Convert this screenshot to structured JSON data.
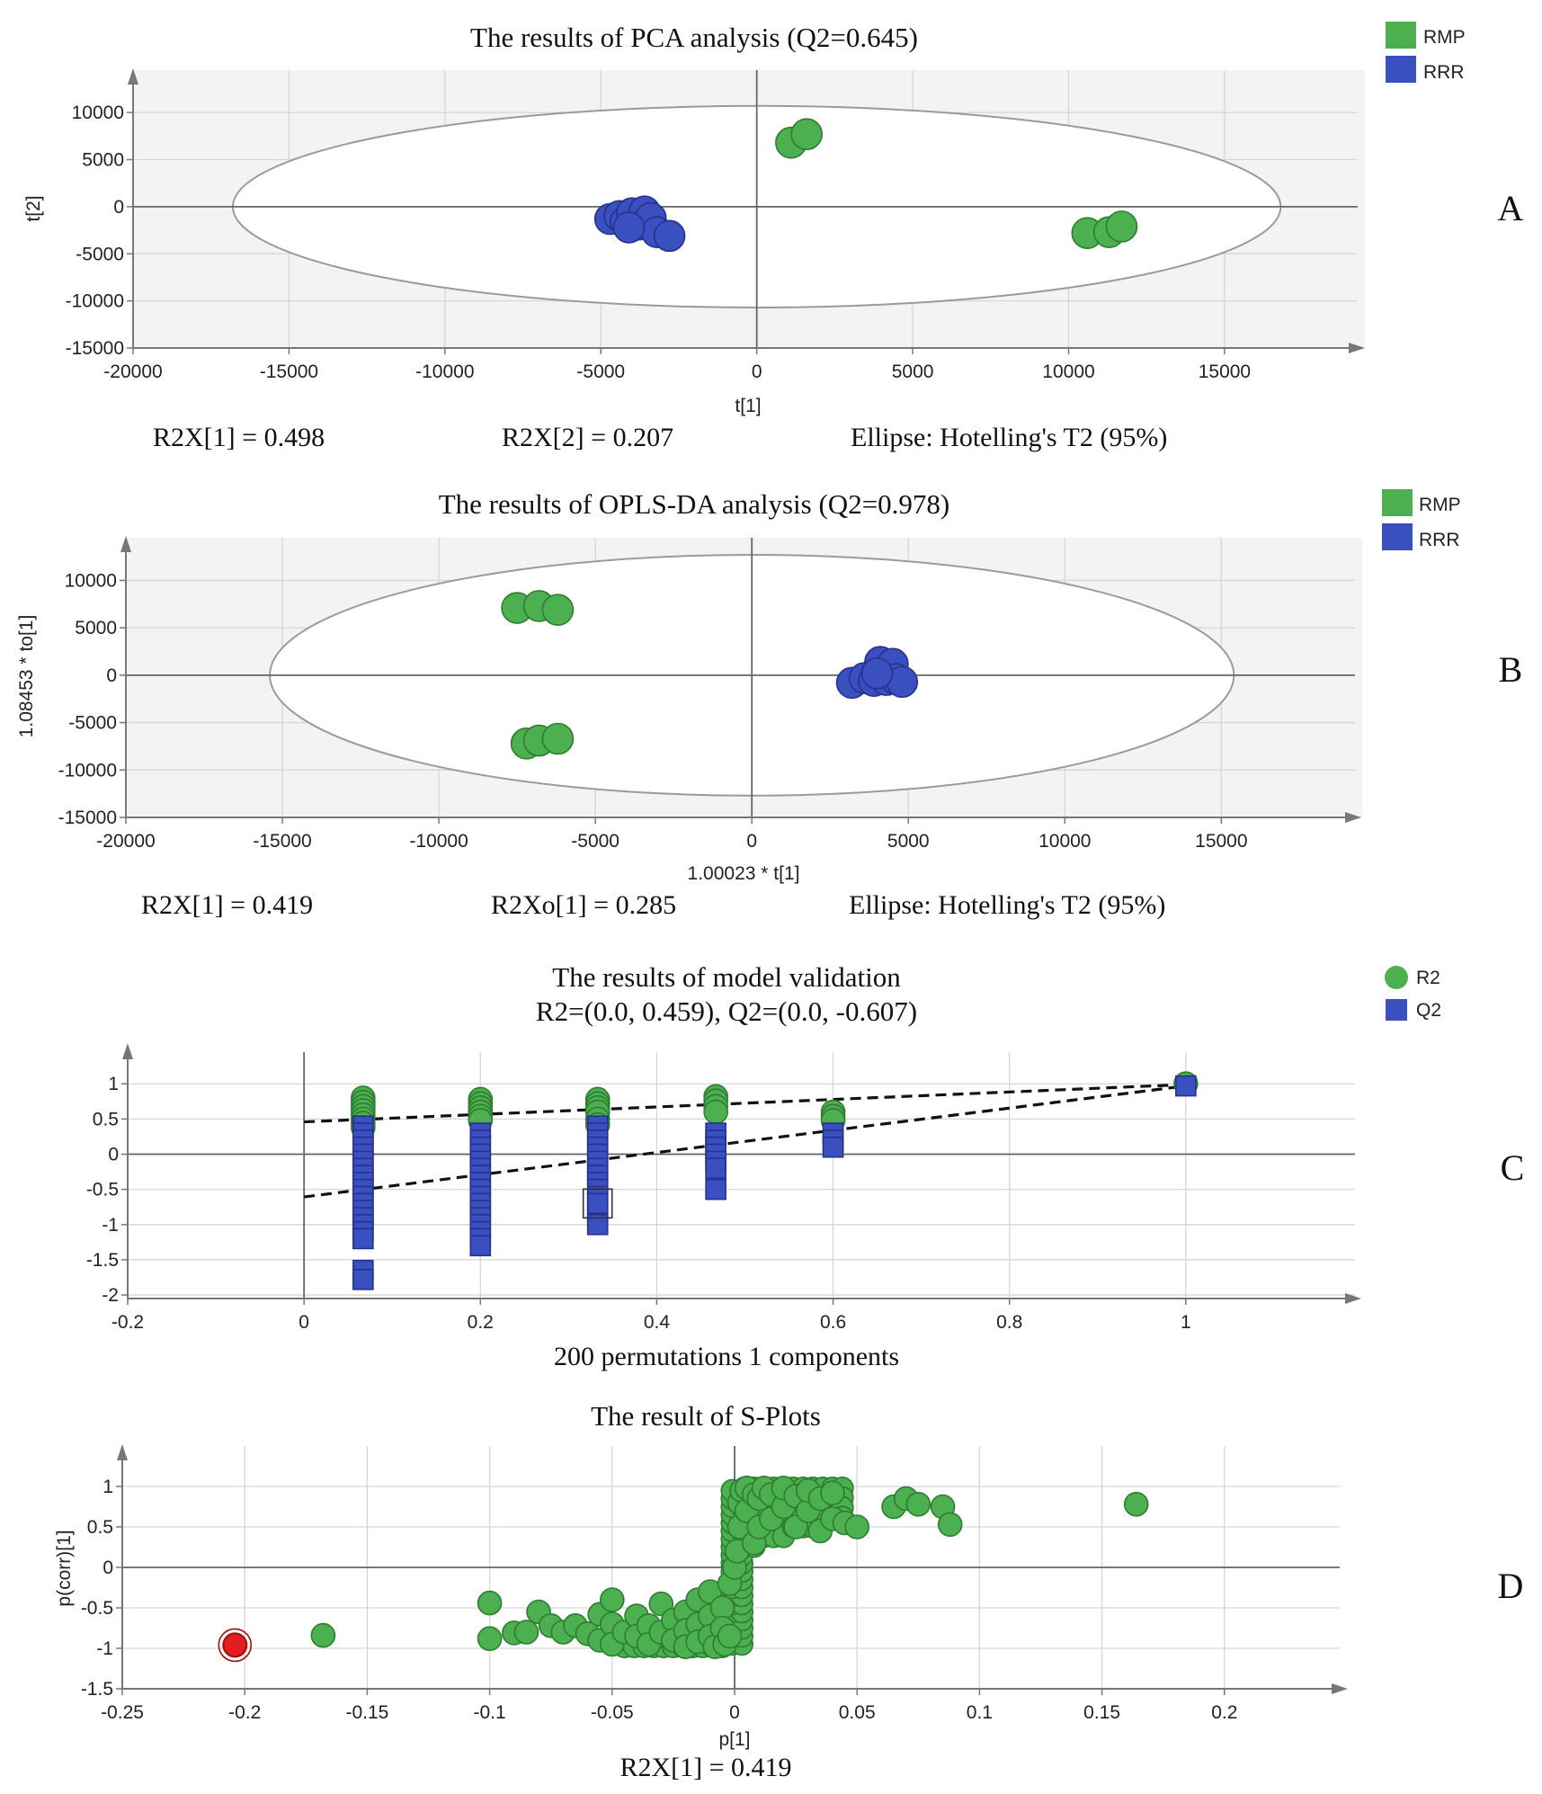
{
  "chart_data": [
    {
      "id": "A",
      "type": "scatter",
      "panel_letter": "A",
      "title": "The results of PCA analysis (Q2=0.645)",
      "xlabel": "t[1]",
      "ylabel": "t[2]",
      "xlim": [
        -20000,
        19500
      ],
      "ylim": [
        -15000,
        14500
      ],
      "xticks": [
        -20000,
        -15000,
        -10000,
        -5000,
        0,
        5000,
        10000,
        15000
      ],
      "yticks": [
        10000,
        5000,
        0,
        -5000,
        -10000,
        -15000
      ],
      "grid": true,
      "legend_position": "top-right",
      "legend": [
        {
          "name": "RMP",
          "color": "#4caf50"
        },
        {
          "name": "RRR",
          "color": "#3a4fc0"
        }
      ],
      "ellipse": {
        "label": "Hotelling's T2 (95%)",
        "center": [
          0,
          0
        ],
        "rx": 16800,
        "ry": 10700
      },
      "series": [
        {
          "name": "RMP",
          "points": [
            [
              1100,
              6800
            ],
            [
              1600,
              7700
            ],
            [
              10600,
              -2800
            ],
            [
              11300,
              -2700
            ],
            [
              11700,
              -2100
            ]
          ]
        },
        {
          "name": "RRR",
          "points": [
            [
              -4700,
              -1300
            ],
            [
              -4400,
              -1000
            ],
            [
              -4200,
              -1600
            ],
            [
              -4000,
              -700
            ],
            [
              -3800,
              -1900
            ],
            [
              -3600,
              -500
            ],
            [
              -3400,
              -1200
            ],
            [
              -3200,
              -2700
            ],
            [
              -2800,
              -3100
            ],
            [
              -4100,
              -2200
            ]
          ]
        }
      ],
      "stats": [
        "R2X[1] = 0.498",
        "R2X[2] = 0.207",
        "Ellipse: Hotelling's T2 (95%)"
      ]
    },
    {
      "id": "B",
      "type": "scatter",
      "panel_letter": "B",
      "title": "The results of OPLS-DA analysis (Q2=0.978)",
      "xlabel": "1.00023 * t[1]",
      "ylabel": "1.08453 * to[1]",
      "xlim": [
        -20000,
        19500
      ],
      "ylim": [
        -15000,
        14500
      ],
      "xticks": [
        -20000,
        -15000,
        -10000,
        -5000,
        0,
        5000,
        10000,
        15000
      ],
      "yticks": [
        10000,
        5000,
        0,
        -5000,
        -10000,
        -15000
      ],
      "grid": true,
      "legend_position": "top-right",
      "legend": [
        {
          "name": "RMP",
          "color": "#4caf50"
        },
        {
          "name": "RRR",
          "color": "#3a4fc0"
        }
      ],
      "ellipse": {
        "label": "Hotelling's T2 (95%)",
        "center": [
          0,
          0
        ],
        "rx": 15400,
        "ry": 12700
      },
      "series": [
        {
          "name": "RMP",
          "points": [
            [
              -7500,
              7100
            ],
            [
              -6800,
              7300
            ],
            [
              -6200,
              6900
            ],
            [
              -7200,
              -7200
            ],
            [
              -6800,
              -6900
            ],
            [
              -6200,
              -6700
            ]
          ]
        },
        {
          "name": "RRR",
          "points": [
            [
              3200,
              -800
            ],
            [
              3600,
              -300
            ],
            [
              3900,
              -600
            ],
            [
              4100,
              1400
            ],
            [
              4300,
              -500
            ],
            [
              4500,
              1200
            ],
            [
              4600,
              -400
            ],
            [
              4800,
              -700
            ],
            [
              4000,
              200
            ]
          ]
        }
      ],
      "stats": [
        "R2X[1] = 0.419",
        "R2Xo[1] = 0.285",
        "Ellipse: Hotelling's T2 (95%)"
      ]
    },
    {
      "id": "C",
      "type": "scatter",
      "panel_letter": "C",
      "title": "The results of model validation",
      "subtitle": "R2=(0.0, 0.459), Q2=(0.0, -0.607)",
      "xlabel": "200 permutations 1 components",
      "ylabel": "",
      "xlim": [
        -0.2,
        1.2
      ],
      "ylim": [
        -2.05,
        1.45
      ],
      "xticks": [
        -0.2,
        0,
        0.2,
        0.4,
        0.6,
        0.8,
        1
      ],
      "yticks": [
        1,
        0.5,
        0,
        -0.5,
        -1,
        -1.5,
        -2
      ],
      "grid": true,
      "legend_position": "top-right",
      "legend": [
        {
          "name": "R2",
          "color": "#4caf50",
          "marker": "circle"
        },
        {
          "name": "Q2",
          "color": "#3a4fc0",
          "marker": "square"
        }
      ],
      "regression_lines": [
        {
          "name": "R2",
          "from": [
            0,
            0.459
          ],
          "to": [
            1,
            0.99
          ]
        },
        {
          "name": "Q2",
          "from": [
            0,
            -0.607
          ],
          "to": [
            1,
            0.97
          ]
        }
      ],
      "series": [
        {
          "name": "R2",
          "marker": "circle",
          "points": [
            [
              0.067,
              0.8
            ],
            [
              0.067,
              0.74
            ],
            [
              0.067,
              0.68
            ],
            [
              0.067,
              0.62
            ],
            [
              0.067,
              0.56
            ],
            [
              0.067,
              0.5
            ],
            [
              0.067,
              0.44
            ],
            [
              0.067,
              0.38
            ],
            [
              0.2,
              0.78
            ],
            [
              0.2,
              0.72
            ],
            [
              0.2,
              0.66
            ],
            [
              0.2,
              0.6
            ],
            [
              0.2,
              0.54
            ],
            [
              0.2,
              0.48
            ],
            [
              0.333,
              0.78
            ],
            [
              0.333,
              0.72
            ],
            [
              0.333,
              0.66
            ],
            [
              0.333,
              0.6
            ],
            [
              0.333,
              0.5
            ],
            [
              0.333,
              0.42
            ],
            [
              0.467,
              0.82
            ],
            [
              0.467,
              0.76
            ],
            [
              0.467,
              0.68
            ],
            [
              0.467,
              0.6
            ],
            [
              0.6,
              0.6
            ],
            [
              0.6,
              0.54
            ],
            [
              0.6,
              0.48
            ],
            [
              1,
              1.0
            ]
          ]
        },
        {
          "name": "Q2",
          "marker": "square",
          "points": [
            [
              0.067,
              0.4
            ],
            [
              0.067,
              0.3
            ],
            [
              0.067,
              0.2
            ],
            [
              0.067,
              0.1
            ],
            [
              0.067,
              0.0
            ],
            [
              0.067,
              -0.1
            ],
            [
              0.067,
              -0.2
            ],
            [
              0.067,
              -0.3
            ],
            [
              0.067,
              -0.4
            ],
            [
              0.067,
              -0.5
            ],
            [
              0.067,
              -0.6
            ],
            [
              0.067,
              -0.7
            ],
            [
              0.067,
              -0.8
            ],
            [
              0.067,
              -0.9
            ],
            [
              0.067,
              -1.0
            ],
            [
              0.067,
              -1.1
            ],
            [
              0.067,
              -1.2
            ],
            [
              0.067,
              -1.65
            ],
            [
              0.067,
              -1.78
            ],
            [
              0.2,
              0.3
            ],
            [
              0.2,
              0.2
            ],
            [
              0.2,
              0.1
            ],
            [
              0.2,
              0.0
            ],
            [
              0.2,
              -0.1
            ],
            [
              0.2,
              -0.2
            ],
            [
              0.2,
              -0.3
            ],
            [
              0.2,
              -0.4
            ],
            [
              0.2,
              -0.5
            ],
            [
              0.2,
              -0.6
            ],
            [
              0.2,
              -0.7
            ],
            [
              0.2,
              -0.8
            ],
            [
              0.2,
              -0.9
            ],
            [
              0.2,
              -1.0
            ],
            [
              0.2,
              -1.1
            ],
            [
              0.2,
              -1.2
            ],
            [
              0.2,
              -1.3
            ],
            [
              0.333,
              0.4
            ],
            [
              0.333,
              0.3
            ],
            [
              0.333,
              0.2
            ],
            [
              0.333,
              0.1
            ],
            [
              0.333,
              0.0
            ],
            [
              0.333,
              -0.1
            ],
            [
              0.333,
              -0.2
            ],
            [
              0.333,
              -0.3
            ],
            [
              0.333,
              -0.4
            ],
            [
              0.333,
              -0.5
            ],
            [
              0.333,
              -0.6
            ],
            [
              0.333,
              -0.7
            ],
            [
              0.333,
              -0.8
            ],
            [
              0.333,
              -0.9
            ],
            [
              0.333,
              -1.0
            ],
            [
              0.467,
              0.3
            ],
            [
              0.467,
              0.2
            ],
            [
              0.467,
              0.1
            ],
            [
              0.467,
              0.0
            ],
            [
              0.467,
              -0.1
            ],
            [
              0.467,
              -0.2
            ],
            [
              0.467,
              -0.5
            ],
            [
              0.6,
              0.3
            ],
            [
              0.6,
              0.2
            ],
            [
              0.6,
              0.1
            ],
            [
              1,
              0.97
            ]
          ]
        },
        {
          "name": "Q2-highlight",
          "marker": "square-outlined",
          "points": [
            [
              0.333,
              -0.7
            ]
          ]
        }
      ]
    },
    {
      "id": "D",
      "type": "scatter",
      "panel_letter": "D",
      "title": "The result of S-Plots",
      "xlabel": "p[1]",
      "ylabel": "p(corr)[1]",
      "xlim": [
        -0.25,
        0.25
      ],
      "ylim": [
        -1.5,
        1.5
      ],
      "xticks": [
        -0.25,
        -0.2,
        -0.15,
        -0.1,
        -0.05,
        0,
        0.05,
        0.1,
        0.15,
        0.2
      ],
      "yticks": [
        1,
        0.5,
        0,
        -0.5,
        -1,
        -1.5
      ],
      "grid": true,
      "stats": [
        "R2X[1] = 0.419"
      ],
      "series": [
        {
          "name": "variables",
          "color": "#4caf50",
          "points": [
            [
              -0.168,
              -0.84
            ],
            [
              -0.1,
              -0.44
            ],
            [
              -0.1,
              -0.88
            ],
            [
              -0.09,
              -0.81
            ],
            [
              -0.085,
              -0.8
            ],
            [
              -0.08,
              -0.55
            ],
            [
              -0.075,
              -0.72
            ],
            [
              -0.07,
              -0.8
            ],
            [
              -0.065,
              -0.72
            ],
            [
              -0.06,
              -0.82
            ],
            [
              -0.055,
              -0.58
            ],
            [
              -0.055,
              -0.9
            ],
            [
              -0.05,
              -0.4
            ],
            [
              -0.05,
              -0.7
            ],
            [
              -0.05,
              -0.95
            ],
            [
              -0.045,
              -0.8
            ],
            [
              -0.04,
              -0.6
            ],
            [
              -0.04,
              -0.85
            ],
            [
              -0.035,
              -0.72
            ],
            [
              -0.035,
              -0.95
            ],
            [
              -0.03,
              -0.45
            ],
            [
              -0.03,
              -0.8
            ],
            [
              -0.025,
              -0.65
            ],
            [
              -0.025,
              -0.9
            ],
            [
              -0.02,
              -0.55
            ],
            [
              -0.02,
              -0.78
            ],
            [
              -0.02,
              -0.98
            ],
            [
              -0.015,
              -0.4
            ],
            [
              -0.015,
              -0.7
            ],
            [
              -0.015,
              -0.92
            ],
            [
              -0.01,
              -0.3
            ],
            [
              -0.01,
              -0.6
            ],
            [
              -0.01,
              -0.85
            ],
            [
              -0.008,
              -0.98
            ],
            [
              -0.005,
              -0.5
            ],
            [
              -0.005,
              -0.75
            ],
            [
              -0.004,
              -0.95
            ],
            [
              -0.002,
              -0.2
            ],
            [
              -0.002,
              -0.85
            ],
            [
              0.0,
              0.0
            ],
            [
              0.001,
              0.2
            ],
            [
              0.002,
              0.5
            ],
            [
              0.002,
              0.8
            ],
            [
              0.003,
              0.95
            ],
            [
              0.005,
              0.7
            ],
            [
              0.005,
              0.98
            ],
            [
              0.008,
              0.3
            ],
            [
              0.008,
              0.9
            ],
            [
              0.01,
              0.5
            ],
            [
              0.01,
              0.85
            ],
            [
              0.012,
              0.98
            ],
            [
              0.015,
              0.6
            ],
            [
              0.015,
              0.9
            ],
            [
              0.02,
              0.75
            ],
            [
              0.02,
              0.98
            ],
            [
              0.025,
              0.5
            ],
            [
              0.025,
              0.88
            ],
            [
              0.03,
              0.7
            ],
            [
              0.03,
              0.95
            ],
            [
              0.035,
              0.45
            ],
            [
              0.035,
              0.85
            ],
            [
              0.04,
              0.6
            ],
            [
              0.04,
              0.92
            ],
            [
              0.045,
              0.55
            ],
            [
              0.05,
              0.5
            ],
            [
              0.065,
              0.75
            ],
            [
              0.07,
              0.85
            ],
            [
              0.075,
              0.78
            ],
            [
              0.085,
              0.75
            ],
            [
              0.088,
              0.53
            ],
            [
              0.164,
              0.78
            ]
          ]
        },
        {
          "name": "selected",
          "color": "#e41e1e",
          "points": [
            [
              -0.204,
              -0.96
            ]
          ]
        }
      ]
    }
  ]
}
